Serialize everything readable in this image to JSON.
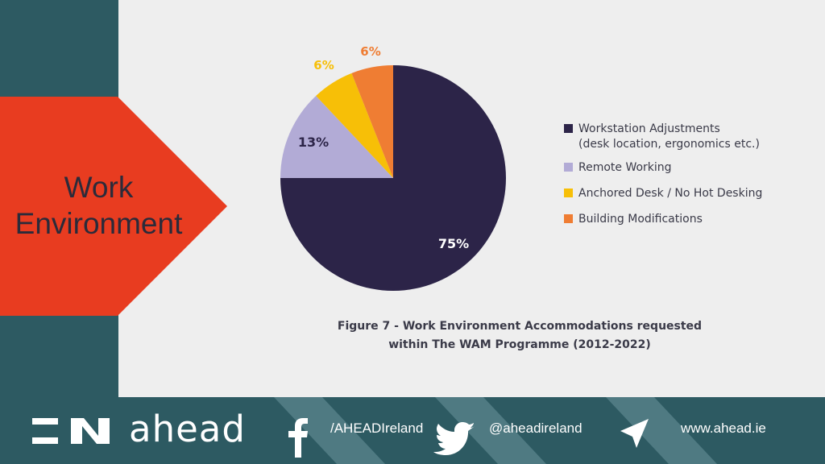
{
  "section": {
    "title_line1": "Work",
    "title_line2": "Environment"
  },
  "chart_data": {
    "type": "pie",
    "title": "",
    "caption_line1": "Figure 7 - Work Environment Accommodations requested",
    "caption_line2": "within The WAM Programme (2012-2022)",
    "slices": [
      {
        "name": "Workstation Adjustments (desk location, ergonomics etc.)",
        "legend_line1": "Workstation Adjustments",
        "legend_line2": "(desk location, ergonomics etc.)",
        "value": 75,
        "label": "75%",
        "color": "#2c2448",
        "label_color": "#ffffff"
      },
      {
        "name": "Remote Working",
        "legend_line1": "Remote Working",
        "value": 13,
        "label": "13%",
        "color": "#b2abd6",
        "label_color": "#2c2448"
      },
      {
        "name": "Anchored Desk / No Hot Desking",
        "legend_line1": "Anchored Desk / No Hot Desking",
        "value": 6,
        "label": "6%",
        "color": "#f7bf07",
        "label_color": "#f7bf07"
      },
      {
        "name": "Building Modifications",
        "legend_line1": "Building Modifications",
        "value": 6,
        "label": "6%",
        "color": "#ef7d33",
        "label_color": "#ef7d33"
      }
    ],
    "legend_position": "right"
  },
  "footer": {
    "brand": "ahead",
    "facebook": "/AHEADIreland",
    "twitter": "@aheadireland",
    "website": "www.ahead.ie"
  },
  "colors": {
    "background_teal": "#2d5a62",
    "arrow_red": "#e83c20",
    "panel_gray": "#eeeeee"
  }
}
